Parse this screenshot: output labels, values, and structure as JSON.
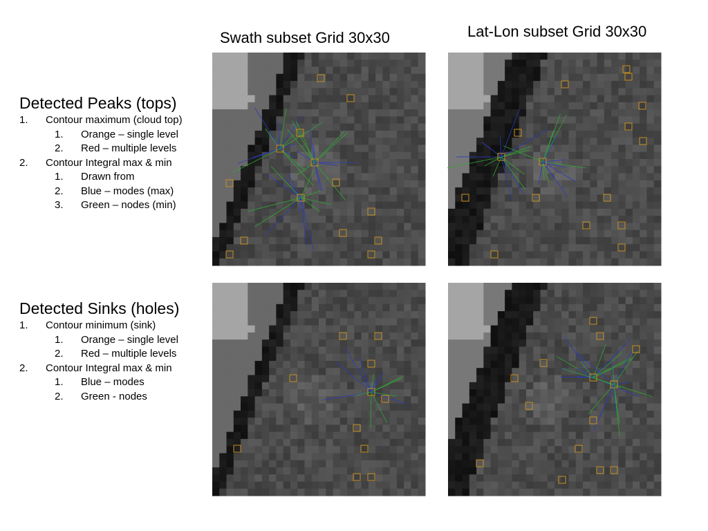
{
  "titles": {
    "swath": "Swath subset Grid 30x30",
    "latlon": "Lat-Lon subset Grid 30x30"
  },
  "sections": [
    {
      "heading": "Detected Peaks (tops)",
      "items": [
        {
          "num": "1.",
          "text": "Contour maximum (cloud top)",
          "sub": [
            {
              "num": "1.",
              "text": "Orange – single level"
            },
            {
              "num": "2.",
              "text": "Red – multiple levels"
            }
          ]
        },
        {
          "num": "2.",
          "text": "Contour Integral max & min",
          "sub": [
            {
              "num": "1.",
              "text": "Drawn from"
            },
            {
              "num": "2.",
              "text": "Blue – modes (max)"
            },
            {
              "num": "3.",
              "text": "Green – nodes (min)"
            }
          ]
        }
      ]
    },
    {
      "heading": "Detected Sinks (holes)",
      "items": [
        {
          "num": "1.",
          "text": "Contour minimum (sink)",
          "sub": [
            {
              "num": "1.",
              "text": "Orange – single level"
            },
            {
              "num": "2.",
              "text": "Red – multiple levels"
            }
          ]
        },
        {
          "num": "2.",
          "text": "Contour Integral max & min",
          "sub": [
            {
              "num": "1.",
              "text": "Blue – modes"
            },
            {
              "num": "2.",
              "text": "Green - nodes"
            }
          ]
        }
      ]
    }
  ]
}
